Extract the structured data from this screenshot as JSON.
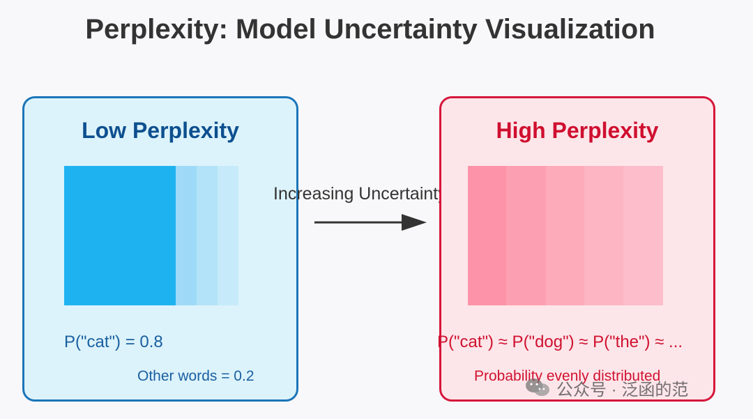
{
  "title": "Perplexity: Model Uncertainty Visualization",
  "arrow_label": "Increasing Uncertainty",
  "panels": {
    "low": {
      "title": "Low Perplexity",
      "main_label": "P(\"cat\") = 0.8",
      "sub_label": "Other words = 0.2",
      "color": "#1b75b8"
    },
    "high": {
      "title": "High Perplexity",
      "main_label": "P(\"cat\") ≈ P(\"dog\") ≈ P(\"the\") ≈ ...",
      "sub_label": "Probability evenly distributed",
      "color": "#d6163a"
    }
  },
  "watermark": {
    "icon": "wechat-icon",
    "text": "公众号 · 泛函的范"
  }
}
